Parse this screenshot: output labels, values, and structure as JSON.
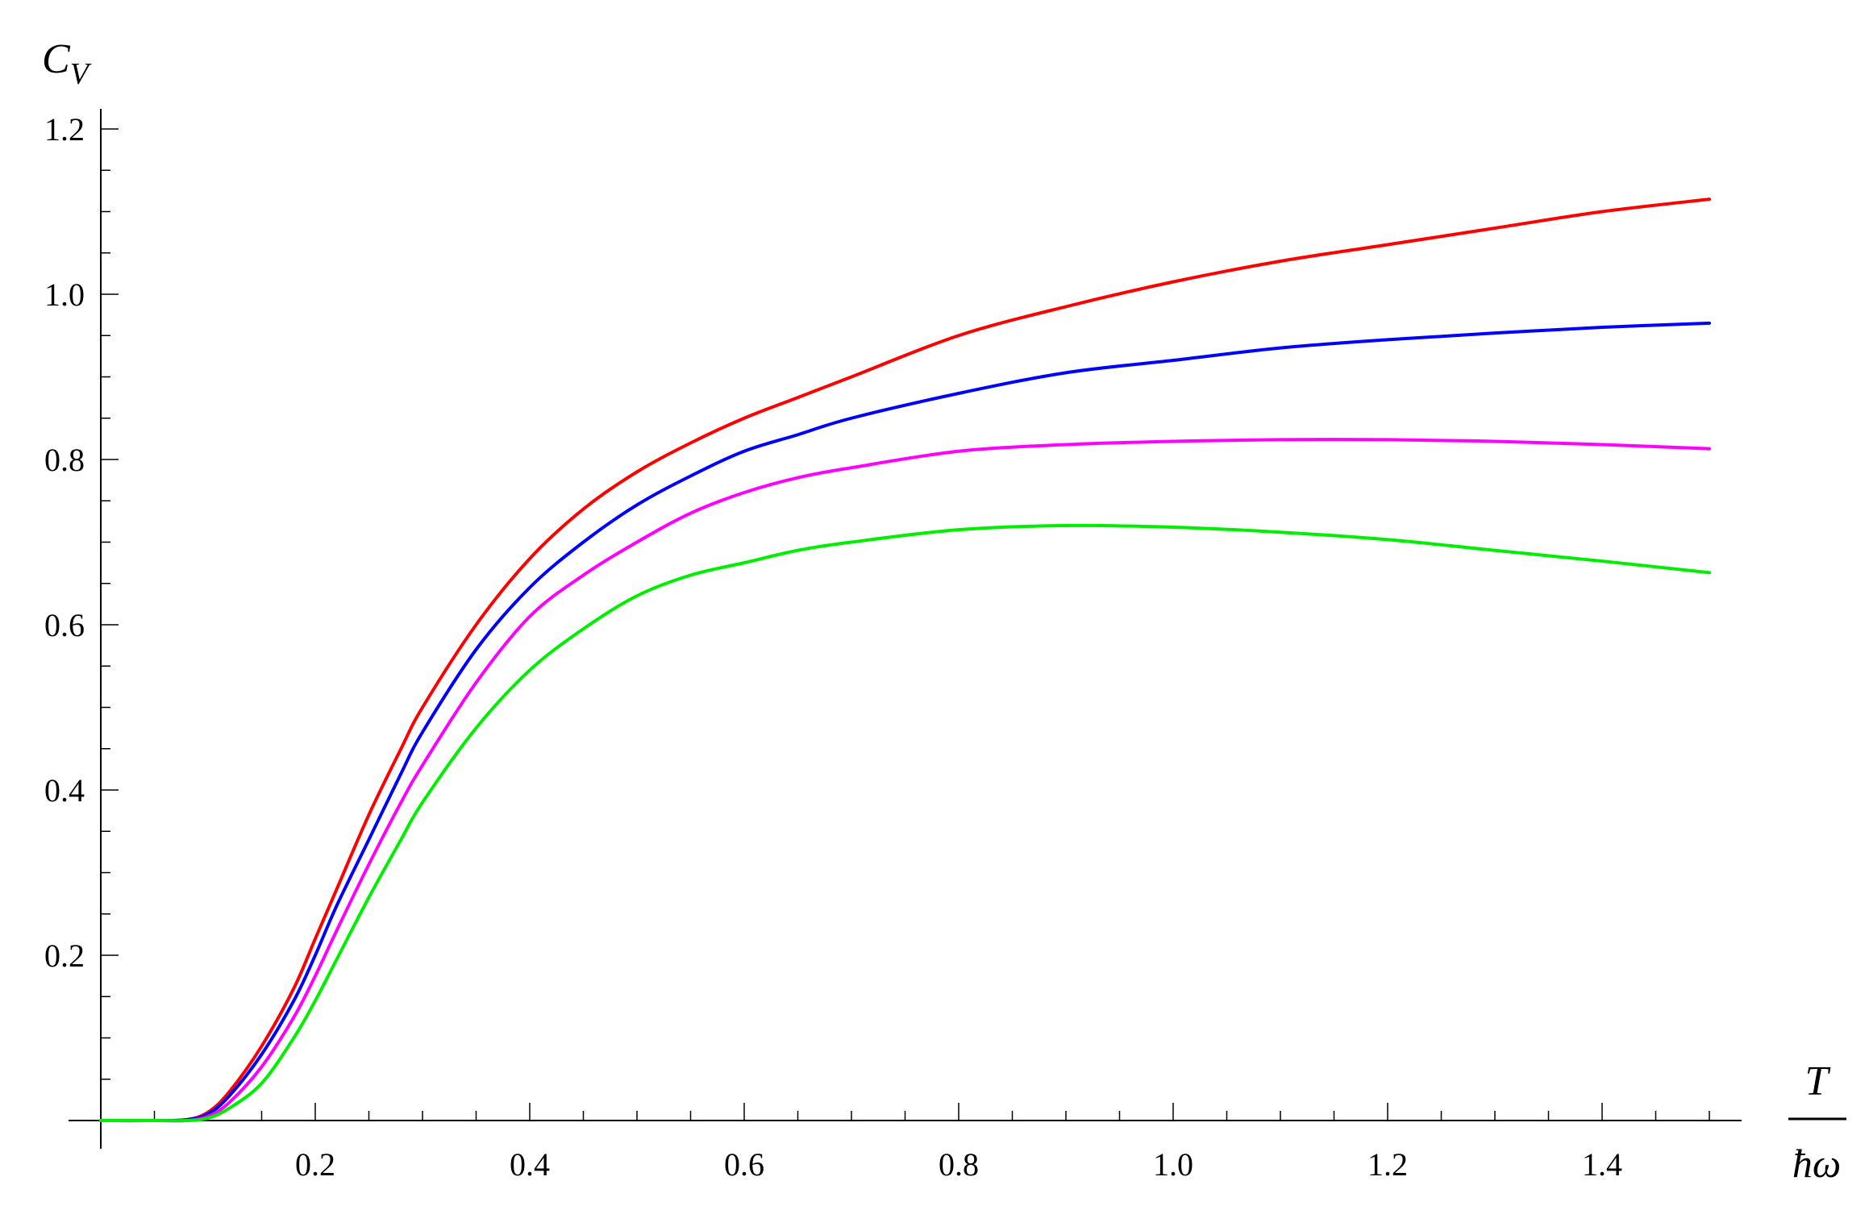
{
  "chart_data": {
    "type": "line",
    "xlabel_numerator": "T",
    "xlabel_denominator": "ħω",
    "ylabel_main": "C",
    "ylabel_sub": "V",
    "xlim": [
      0,
      1.5
    ],
    "ylim": [
      0,
      1.2
    ],
    "x_ticks": [
      0.2,
      0.4,
      0.6,
      0.8,
      1.0,
      1.2,
      1.4
    ],
    "x_tick_labels": [
      "0.2",
      "0.4",
      "0.6",
      "0.8",
      "1.0",
      "1.2",
      "1.4"
    ],
    "y_ticks": [
      0.2,
      0.4,
      0.6,
      0.8,
      1.0,
      1.2
    ],
    "y_tick_labels": [
      "0.2",
      "0.4",
      "0.6",
      "0.8",
      "1.0",
      "1.2"
    ],
    "grid": false,
    "x": [
      0.0,
      0.05,
      0.08,
      0.1,
      0.12,
      0.15,
      0.18,
      0.2,
      0.22,
      0.25,
      0.28,
      0.3,
      0.35,
      0.4,
      0.45,
      0.5,
      0.55,
      0.6,
      0.65,
      0.7,
      0.8,
      0.9,
      1.0,
      1.1,
      1.2,
      1.3,
      1.4,
      1.5
    ],
    "series": [
      {
        "color": "#ff0000",
        "values": [
          0.0,
          0.0,
          0.001,
          0.01,
          0.035,
          0.09,
          0.16,
          0.22,
          0.28,
          0.37,
          0.45,
          0.5,
          0.6,
          0.68,
          0.74,
          0.785,
          0.82,
          0.85,
          0.875,
          0.9,
          0.95,
          0.985,
          1.015,
          1.04,
          1.06,
          1.08,
          1.1,
          1.115
        ]
      },
      {
        "color": "#0000ff",
        "values": [
          0.0,
          0.0,
          0.001,
          0.008,
          0.03,
          0.08,
          0.145,
          0.2,
          0.26,
          0.34,
          0.42,
          0.47,
          0.57,
          0.645,
          0.7,
          0.745,
          0.78,
          0.81,
          0.83,
          0.85,
          0.88,
          0.905,
          0.92,
          0.935,
          0.945,
          0.953,
          0.96,
          0.965
        ]
      },
      {
        "color": "#ff00ff",
        "values": [
          0.0,
          0.0,
          0.0,
          0.005,
          0.022,
          0.065,
          0.125,
          0.175,
          0.23,
          0.31,
          0.385,
          0.43,
          0.53,
          0.61,
          0.66,
          0.7,
          0.735,
          0.76,
          0.778,
          0.79,
          0.81,
          0.818,
          0.822,
          0.824,
          0.824,
          0.822,
          0.818,
          0.813
        ]
      },
      {
        "color": "#00ee00",
        "values": [
          0.0,
          0.0,
          0.0,
          0.003,
          0.015,
          0.045,
          0.1,
          0.145,
          0.195,
          0.27,
          0.34,
          0.385,
          0.475,
          0.545,
          0.595,
          0.635,
          0.66,
          0.675,
          0.69,
          0.7,
          0.715,
          0.72,
          0.718,
          0.712,
          0.703,
          0.69,
          0.677,
          0.663
        ]
      }
    ]
  }
}
